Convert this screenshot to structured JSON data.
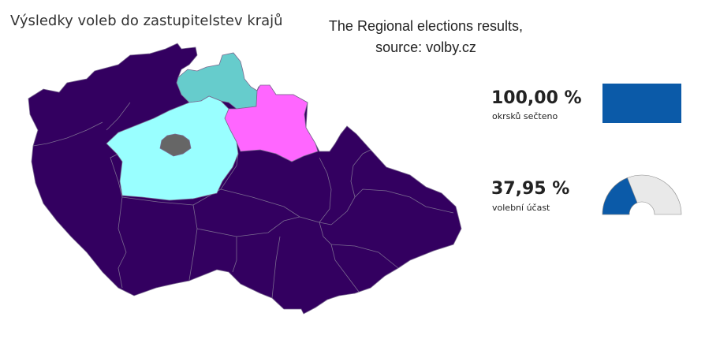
{
  "header": {
    "title": "Výsledky voleb do zastupitelstev krajů",
    "caption_line1": "The Regional elections results,",
    "caption_line2": "source: volby.cz"
  },
  "map": {
    "colors": {
      "main": "#330060",
      "north_teal": "#66cccc",
      "pink": "#ff66ff",
      "cyan": "#99ffff",
      "prague": "#666666",
      "border": "#7a6a90"
    }
  },
  "stats": {
    "counted": {
      "value": "100,00 %",
      "label": "okrsků sečteno",
      "fraction": 1.0,
      "color": "#0b5aa8"
    },
    "turnout": {
      "value": "37,95 %",
      "label": "volební účast",
      "fraction": 0.3795,
      "color": "#0b5aa8",
      "track": "#e9e9e9"
    }
  }
}
